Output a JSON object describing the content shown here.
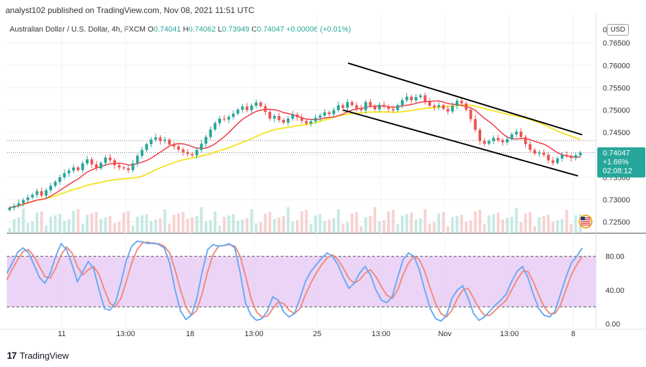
{
  "header": {
    "published": "analyst102 published on TradingView.com, Nov 08, 2021 11:51 UTC"
  },
  "legend": {
    "symbol": "Australian Dollar / U.S. Dollar, 4h, FXCM",
    "o_label": "O",
    "o_value": "0.74041",
    "h_label": "H",
    "h_value": "0.74062",
    "l_label": "L",
    "l_value": "0.73949",
    "c_label": "C",
    "c_value": "0.74047",
    "change": "+0.00006 (+0.01%)"
  },
  "currency": "USD",
  "price_tag": {
    "price": "0.74047",
    "change_pct": "+1.66%",
    "countdown": "02:08:12",
    "color": "#26a69a"
  },
  "footer": {
    "brand": "TradingView",
    "logo_icon": "tradingview-logo-icon"
  },
  "colors": {
    "up": "#26a69a",
    "down": "#ef5350",
    "ma_fast": "#f23645",
    "ma_slow": "#f5e52a",
    "stoch_k": "#6aa9f5",
    "stoch_d": "#f08a7a",
    "stoch_band": "#e7c9f5",
    "channel": "#000000"
  },
  "chart_data": [
    {
      "type": "candlestick",
      "y_axis_ticks": [
        "0.76500",
        "0.76000",
        "0.75500",
        "0.75000",
        "0.74500",
        "0.74000",
        "0.73500",
        "0.73000",
        "0.72500"
      ],
      "y_axis_top_label": "0",
      "ylim": [
        0.7225,
        0.77
      ],
      "x_axis_ticks": [
        "11",
        "13:00",
        "18",
        "13:00",
        "25",
        "13:00",
        "Nov",
        "13:00",
        "8"
      ],
      "close_series": [
        0.7282,
        0.7286,
        0.7292,
        0.7299,
        0.7305,
        0.7311,
        0.7319,
        0.7309,
        0.7321,
        0.7331,
        0.734,
        0.735,
        0.7359,
        0.7365,
        0.7372,
        0.7366,
        0.7381,
        0.739,
        0.7379,
        0.737,
        0.7382,
        0.7394,
        0.7388,
        0.7377,
        0.7372,
        0.737,
        0.7366,
        0.7381,
        0.7398,
        0.7411,
        0.7424,
        0.7434,
        0.7439,
        0.7431,
        0.7434,
        0.7423,
        0.7419,
        0.7412,
        0.7406,
        0.7402,
        0.7399,
        0.7411,
        0.7425,
        0.744,
        0.7457,
        0.7471,
        0.7481,
        0.7479,
        0.7485,
        0.7492,
        0.7501,
        0.7508,
        0.75,
        0.751,
        0.7517,
        0.7509,
        0.7496,
        0.7481,
        0.7487,
        0.7478,
        0.7472,
        0.7481,
        0.749,
        0.7484,
        0.7476,
        0.747,
        0.7475,
        0.7483,
        0.7488,
        0.7495,
        0.7491,
        0.75,
        0.7511,
        0.7505,
        0.7518,
        0.7511,
        0.7504,
        0.75,
        0.7518,
        0.751,
        0.7502,
        0.7512,
        0.7508,
        0.7503,
        0.75,
        0.7511,
        0.7522,
        0.753,
        0.7522,
        0.7529,
        0.7533,
        0.7519,
        0.751,
        0.7507,
        0.7511,
        0.7503,
        0.7497,
        0.751,
        0.7521,
        0.7515,
        0.7501,
        0.748,
        0.7456,
        0.7431,
        0.7425,
        0.7431,
        0.7438,
        0.7433,
        0.7428,
        0.7435,
        0.7446,
        0.7452,
        0.744,
        0.7424,
        0.7411,
        0.7403,
        0.7405,
        0.74,
        0.7388,
        0.7382,
        0.7392,
        0.74,
        0.7398,
        0.7393,
        0.7399,
        0.7405
      ],
      "ma_fast_range": [
        0.727,
        0.752
      ],
      "ma_slow_range": [
        0.727,
        0.746
      ],
      "channel_upper": [
        [
          0.7605,
          "22 Oct 12:00"
        ],
        [
          0.7445,
          "8 Nov 04:00"
        ]
      ],
      "channel_lower": [
        [
          0.75,
          "26 Oct 00:00"
        ],
        [
          0.7353,
          "8 Nov 04:00"
        ]
      ],
      "dotted_levels": [
        0.7432,
        0.7405
      ]
    },
    {
      "type": "line",
      "name": "stochastic",
      "y_axis_ticks": [
        "80.00",
        "40.00",
        "0.00"
      ],
      "ylim": [
        -5,
        105
      ],
      "band": [
        20,
        80
      ],
      "k": [
        60,
        72,
        85,
        90,
        84,
        70,
        55,
        48,
        60,
        80,
        95,
        88,
        70,
        50,
        62,
        74,
        65,
        40,
        18,
        16,
        25,
        48,
        75,
        92,
        98,
        97,
        95,
        96,
        94,
        90,
        72,
        40,
        15,
        5,
        10,
        30,
        62,
        88,
        94,
        92,
        93,
        95,
        90,
        60,
        24,
        10,
        4,
        6,
        15,
        32,
        28,
        14,
        8,
        12,
        30,
        50,
        62,
        70,
        78,
        84,
        80,
        70,
        55,
        42,
        48,
        60,
        68,
        58,
        40,
        28,
        25,
        32,
        55,
        76,
        84,
        80,
        64,
        40,
        18,
        6,
        3,
        10,
        30,
        40,
        45,
        30,
        12,
        4,
        8,
        15,
        22,
        28,
        35,
        50,
        62,
        68,
        55,
        35,
        18,
        10,
        8,
        15,
        35,
        55,
        72,
        80,
        90
      ],
      "d": [
        52,
        65,
        76,
        86,
        88,
        80,
        68,
        56,
        54,
        66,
        82,
        91,
        84,
        68,
        58,
        64,
        68,
        58,
        40,
        24,
        20,
        30,
        50,
        72,
        88,
        96,
        97,
        95,
        95,
        92,
        84,
        64,
        40,
        20,
        10,
        16,
        36,
        62,
        82,
        92,
        93,
        94,
        92,
        80,
        56,
        30,
        14,
        8,
        9,
        18,
        26,
        24,
        16,
        12,
        18,
        34,
        48,
        60,
        70,
        78,
        82,
        76,
        66,
        54,
        48,
        52,
        60,
        64,
        56,
        44,
        34,
        30,
        40,
        58,
        72,
        80,
        76,
        62,
        42,
        24,
        12,
        8,
        16,
        30,
        40,
        42,
        30,
        18,
        10,
        10,
        16,
        22,
        28,
        40,
        52,
        62,
        62,
        50,
        34,
        20,
        12,
        12,
        22,
        40,
        58,
        70,
        80
      ]
    }
  ]
}
